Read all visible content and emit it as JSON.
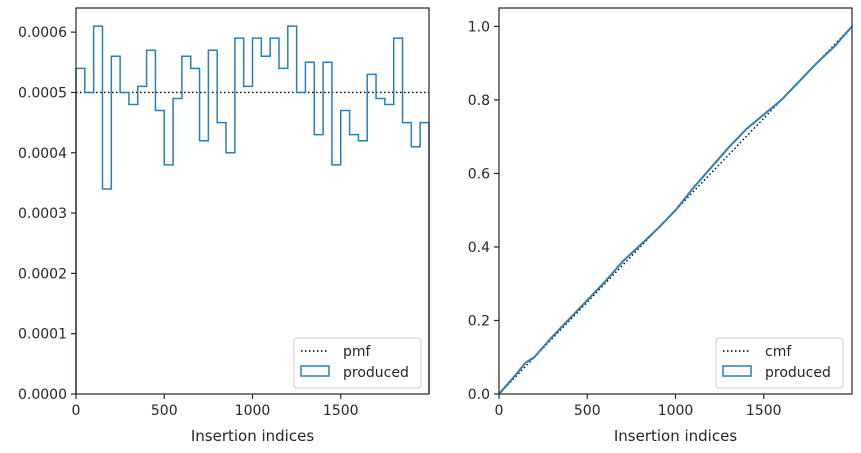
{
  "chart_data": [
    {
      "type": "step",
      "xlabel": "Insertion indices",
      "ylabel": "",
      "xlim": [
        0,
        2000
      ],
      "ylim": [
        0,
        0.00064
      ],
      "xticks": [
        "0",
        "500",
        "1000",
        "1500"
      ],
      "yticks": [
        "0.0000",
        "0.0001",
        "0.0002",
        "0.0003",
        "0.0004",
        "0.0005",
        "0.0006"
      ],
      "legend": {
        "placement": "lower-right",
        "entries": [
          "pmf",
          "produced"
        ]
      },
      "series": [
        {
          "name": "pmf",
          "style": "dotted",
          "color": "#000000",
          "x": [
            0,
            2000
          ],
          "values": [
            0.0005,
            0.0005
          ]
        },
        {
          "name": "produced",
          "style": "step-histogram",
          "color": "#2a7fb8",
          "bin_width": 50,
          "values": [
            0.00054,
            0.0005,
            0.00061,
            0.00034,
            0.00056,
            0.0005,
            0.00048,
            0.00051,
            0.00057,
            0.00047,
            0.00038,
            0.00049,
            0.00056,
            0.00054,
            0.00042,
            0.00057,
            0.00045,
            0.0004,
            0.00059,
            0.00051,
            0.00059,
            0.00056,
            0.00059,
            0.00054,
            0.00061,
            0.0005,
            0.00055,
            0.00043,
            0.00055,
            0.00038,
            0.00047,
            0.00043,
            0.00042,
            0.00053,
            0.00049,
            0.00048,
            0.00059,
            0.00045,
            0.00041,
            0.00045
          ]
        }
      ]
    },
    {
      "type": "line",
      "xlabel": "Insertion indices",
      "ylabel": "",
      "xlim": [
        0,
        2000
      ],
      "ylim": [
        0,
        1.05
      ],
      "xticks": [
        "0",
        "500",
        "1000",
        "1500"
      ],
      "yticks": [
        "0.0",
        "0.2",
        "0.4",
        "0.6",
        "0.8",
        "1.0"
      ],
      "legend": {
        "placement": "lower-right",
        "entries": [
          "cmf",
          "produced"
        ]
      },
      "series": [
        {
          "name": "cmf",
          "style": "dotted",
          "color": "#000000",
          "x": [
            0,
            2000
          ],
          "values": [
            0,
            1.0
          ]
        },
        {
          "name": "produced",
          "style": "solid",
          "color": "#2a7fb8",
          "x": [
            0,
            100,
            150,
            200,
            300,
            400,
            500,
            600,
            700,
            800,
            900,
            1000,
            1100,
            1200,
            1300,
            1400,
            1500,
            1600,
            1700,
            1800,
            1900,
            2000
          ],
          "values": [
            0,
            0.055,
            0.085,
            0.1,
            0.155,
            0.205,
            0.255,
            0.305,
            0.36,
            0.405,
            0.45,
            0.5,
            0.56,
            0.615,
            0.67,
            0.72,
            0.76,
            0.8,
            0.85,
            0.9,
            0.945,
            1.0
          ]
        }
      ]
    }
  ]
}
